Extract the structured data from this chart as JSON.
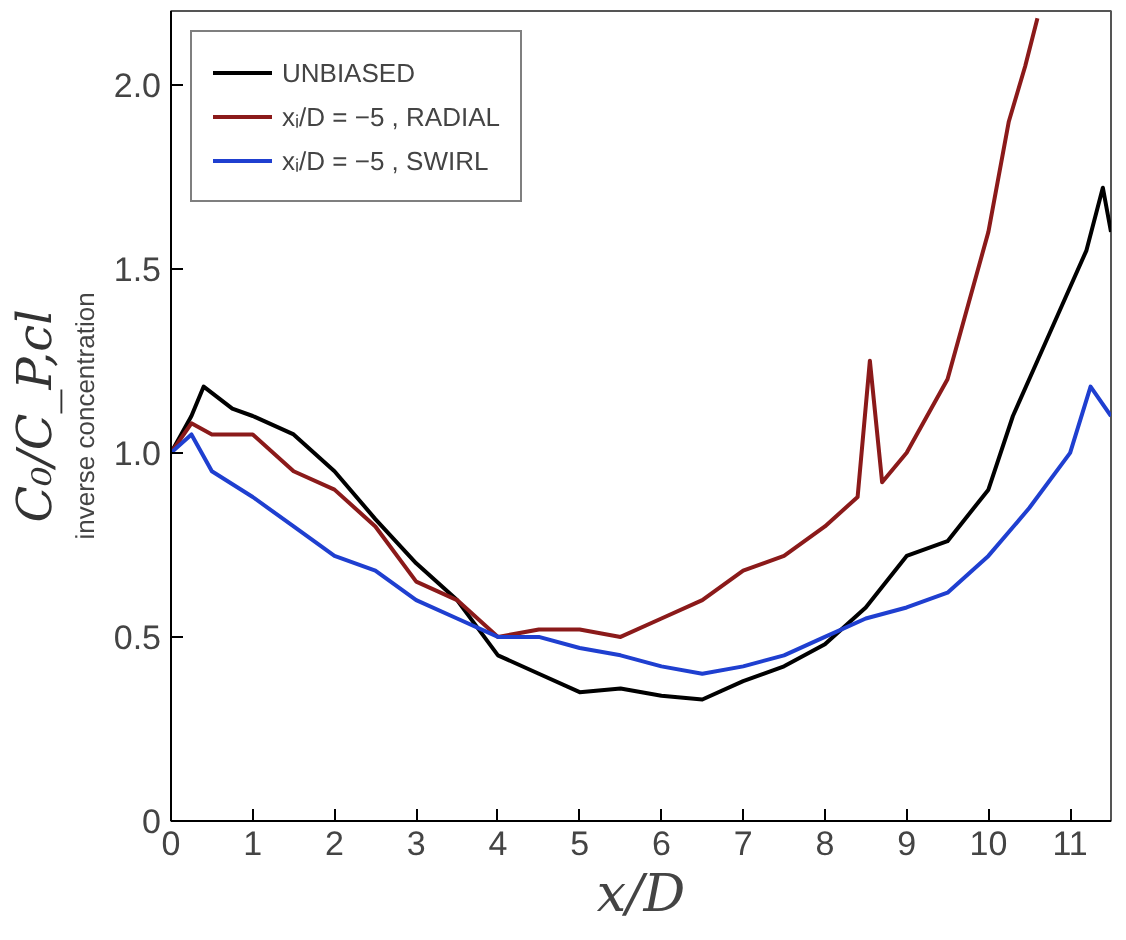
{
  "chart_data": {
    "type": "line",
    "xlabel": "x/D",
    "ylabel": "C₀/C_P,cl",
    "annotations": [
      "inverse concentration"
    ],
    "xlim": [
      0,
      11.5
    ],
    "ylim": [
      0,
      2.2
    ],
    "xticks": [
      0,
      1,
      2,
      3,
      4,
      5,
      6,
      7,
      8,
      9,
      10,
      11
    ],
    "yticks": [
      0,
      {
        "value": 0.5,
        "label": "0.5"
      },
      {
        "value": 1,
        "label": "1.0"
      },
      {
        "value": 1.5,
        "label": "1.5"
      },
      {
        "value": 2,
        "label": "2.0"
      }
    ],
    "grid": false,
    "legend": "top left",
    "marker": "none",
    "line_style": "solid",
    "series": [
      {
        "name": "UNBIASED",
        "color": "#000000",
        "x": [
          0,
          0.25,
          0.4,
          0.75,
          1,
          1.5,
          2,
          2.5,
          3,
          3.5,
          4,
          4.5,
          5,
          5.5,
          6,
          6.5,
          7,
          7.5,
          8,
          8.5,
          9,
          9.5,
          10,
          10.3,
          10.6,
          10.9,
          11.2,
          11.4,
          11.5
        ],
        "values": [
          1.0,
          1.1,
          1.18,
          1.12,
          1.1,
          1.05,
          0.95,
          0.82,
          0.7,
          0.6,
          0.45,
          0.4,
          0.35,
          0.36,
          0.34,
          0.33,
          0.38,
          0.42,
          0.48,
          0.58,
          0.72,
          0.76,
          0.9,
          1.1,
          1.25,
          1.4,
          1.55,
          1.72,
          1.6
        ]
      },
      {
        "name": "xᵢ/D = −5 , RADIAL",
        "color": "#8b1a1a",
        "x": [
          0,
          0.25,
          0.5,
          1,
          1.5,
          2,
          2.5,
          3,
          3.5,
          4,
          4.5,
          5,
          5.5,
          6,
          6.5,
          7,
          7.5,
          8,
          8.4,
          8.55,
          8.7,
          9,
          9.25,
          9.5,
          9.75,
          10,
          10.25,
          10.45,
          10.6
        ],
        "values": [
          1.0,
          1.08,
          1.05,
          1.05,
          0.95,
          0.9,
          0.8,
          0.65,
          0.6,
          0.5,
          0.52,
          0.52,
          0.5,
          0.55,
          0.6,
          0.68,
          0.72,
          0.8,
          0.88,
          1.25,
          0.92,
          1.0,
          1.1,
          1.2,
          1.4,
          1.6,
          1.9,
          2.05,
          2.18
        ]
      },
      {
        "name": "xᵢ/D = −5 , SWIRL",
        "color": "#1f3fd0",
        "x": [
          0,
          0.25,
          0.5,
          1,
          1.5,
          2,
          2.5,
          3,
          3.5,
          4,
          4.5,
          5,
          5.5,
          6,
          6.5,
          7,
          7.5,
          8,
          8.5,
          9,
          9.5,
          10,
          10.5,
          11,
          11.25,
          11.5
        ],
        "values": [
          1.0,
          1.05,
          0.95,
          0.88,
          0.8,
          0.72,
          0.68,
          0.6,
          0.55,
          0.5,
          0.5,
          0.47,
          0.45,
          0.42,
          0.4,
          0.42,
          0.45,
          0.5,
          0.55,
          0.58,
          0.62,
          0.72,
          0.85,
          1.0,
          1.18,
          1.1
        ]
      }
    ]
  }
}
